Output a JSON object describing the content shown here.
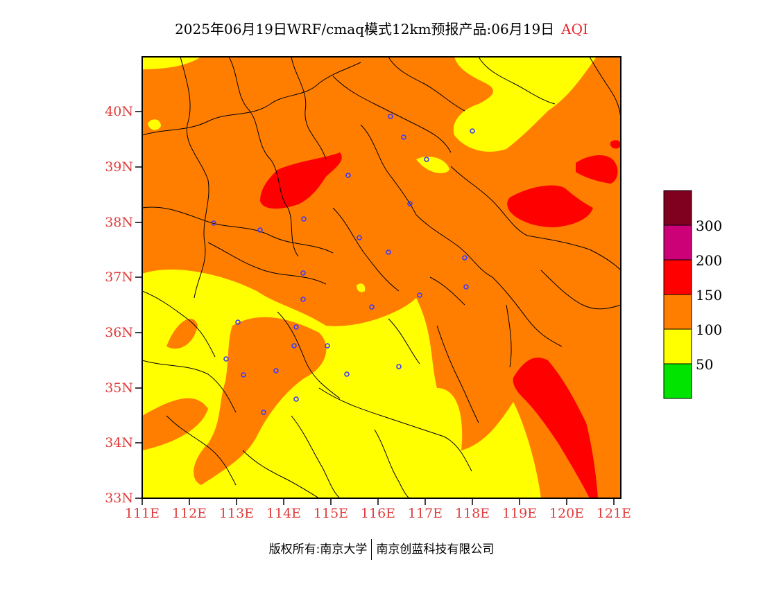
{
  "title": {
    "main": "2025年06月19日WRF/cmaq模式12km预报产品:06月19日",
    "tag": "AQI"
  },
  "axes": {
    "lat_labels": [
      "40N",
      "39N",
      "38N",
      "37N",
      "36N",
      "35N",
      "34N",
      "33N"
    ],
    "lon_labels": [
      "111E",
      "112E",
      "113E",
      "114E",
      "115E",
      "116E",
      "117E",
      "118E",
      "119E",
      "120E",
      "121E"
    ]
  },
  "legend": {
    "labels": [
      "300",
      "200",
      "150",
      "100",
      "50"
    ],
    "colors": [
      "#800020",
      "#cc0077",
      "#ff0000",
      "#ff7e00",
      "#ffff00",
      "#00e400"
    ]
  },
  "footer": {
    "left": "版权所有:南京大学",
    "right": "南京创蓝科技有限公司"
  },
  "map": {
    "colors": {
      "good": "#00e400",
      "moderate": "#ffff00",
      "unhealthy_sensitive": "#ff7e00",
      "unhealthy": "#ff0000",
      "city_marker": "#3a3aff",
      "boundary": "#000000"
    }
  }
}
